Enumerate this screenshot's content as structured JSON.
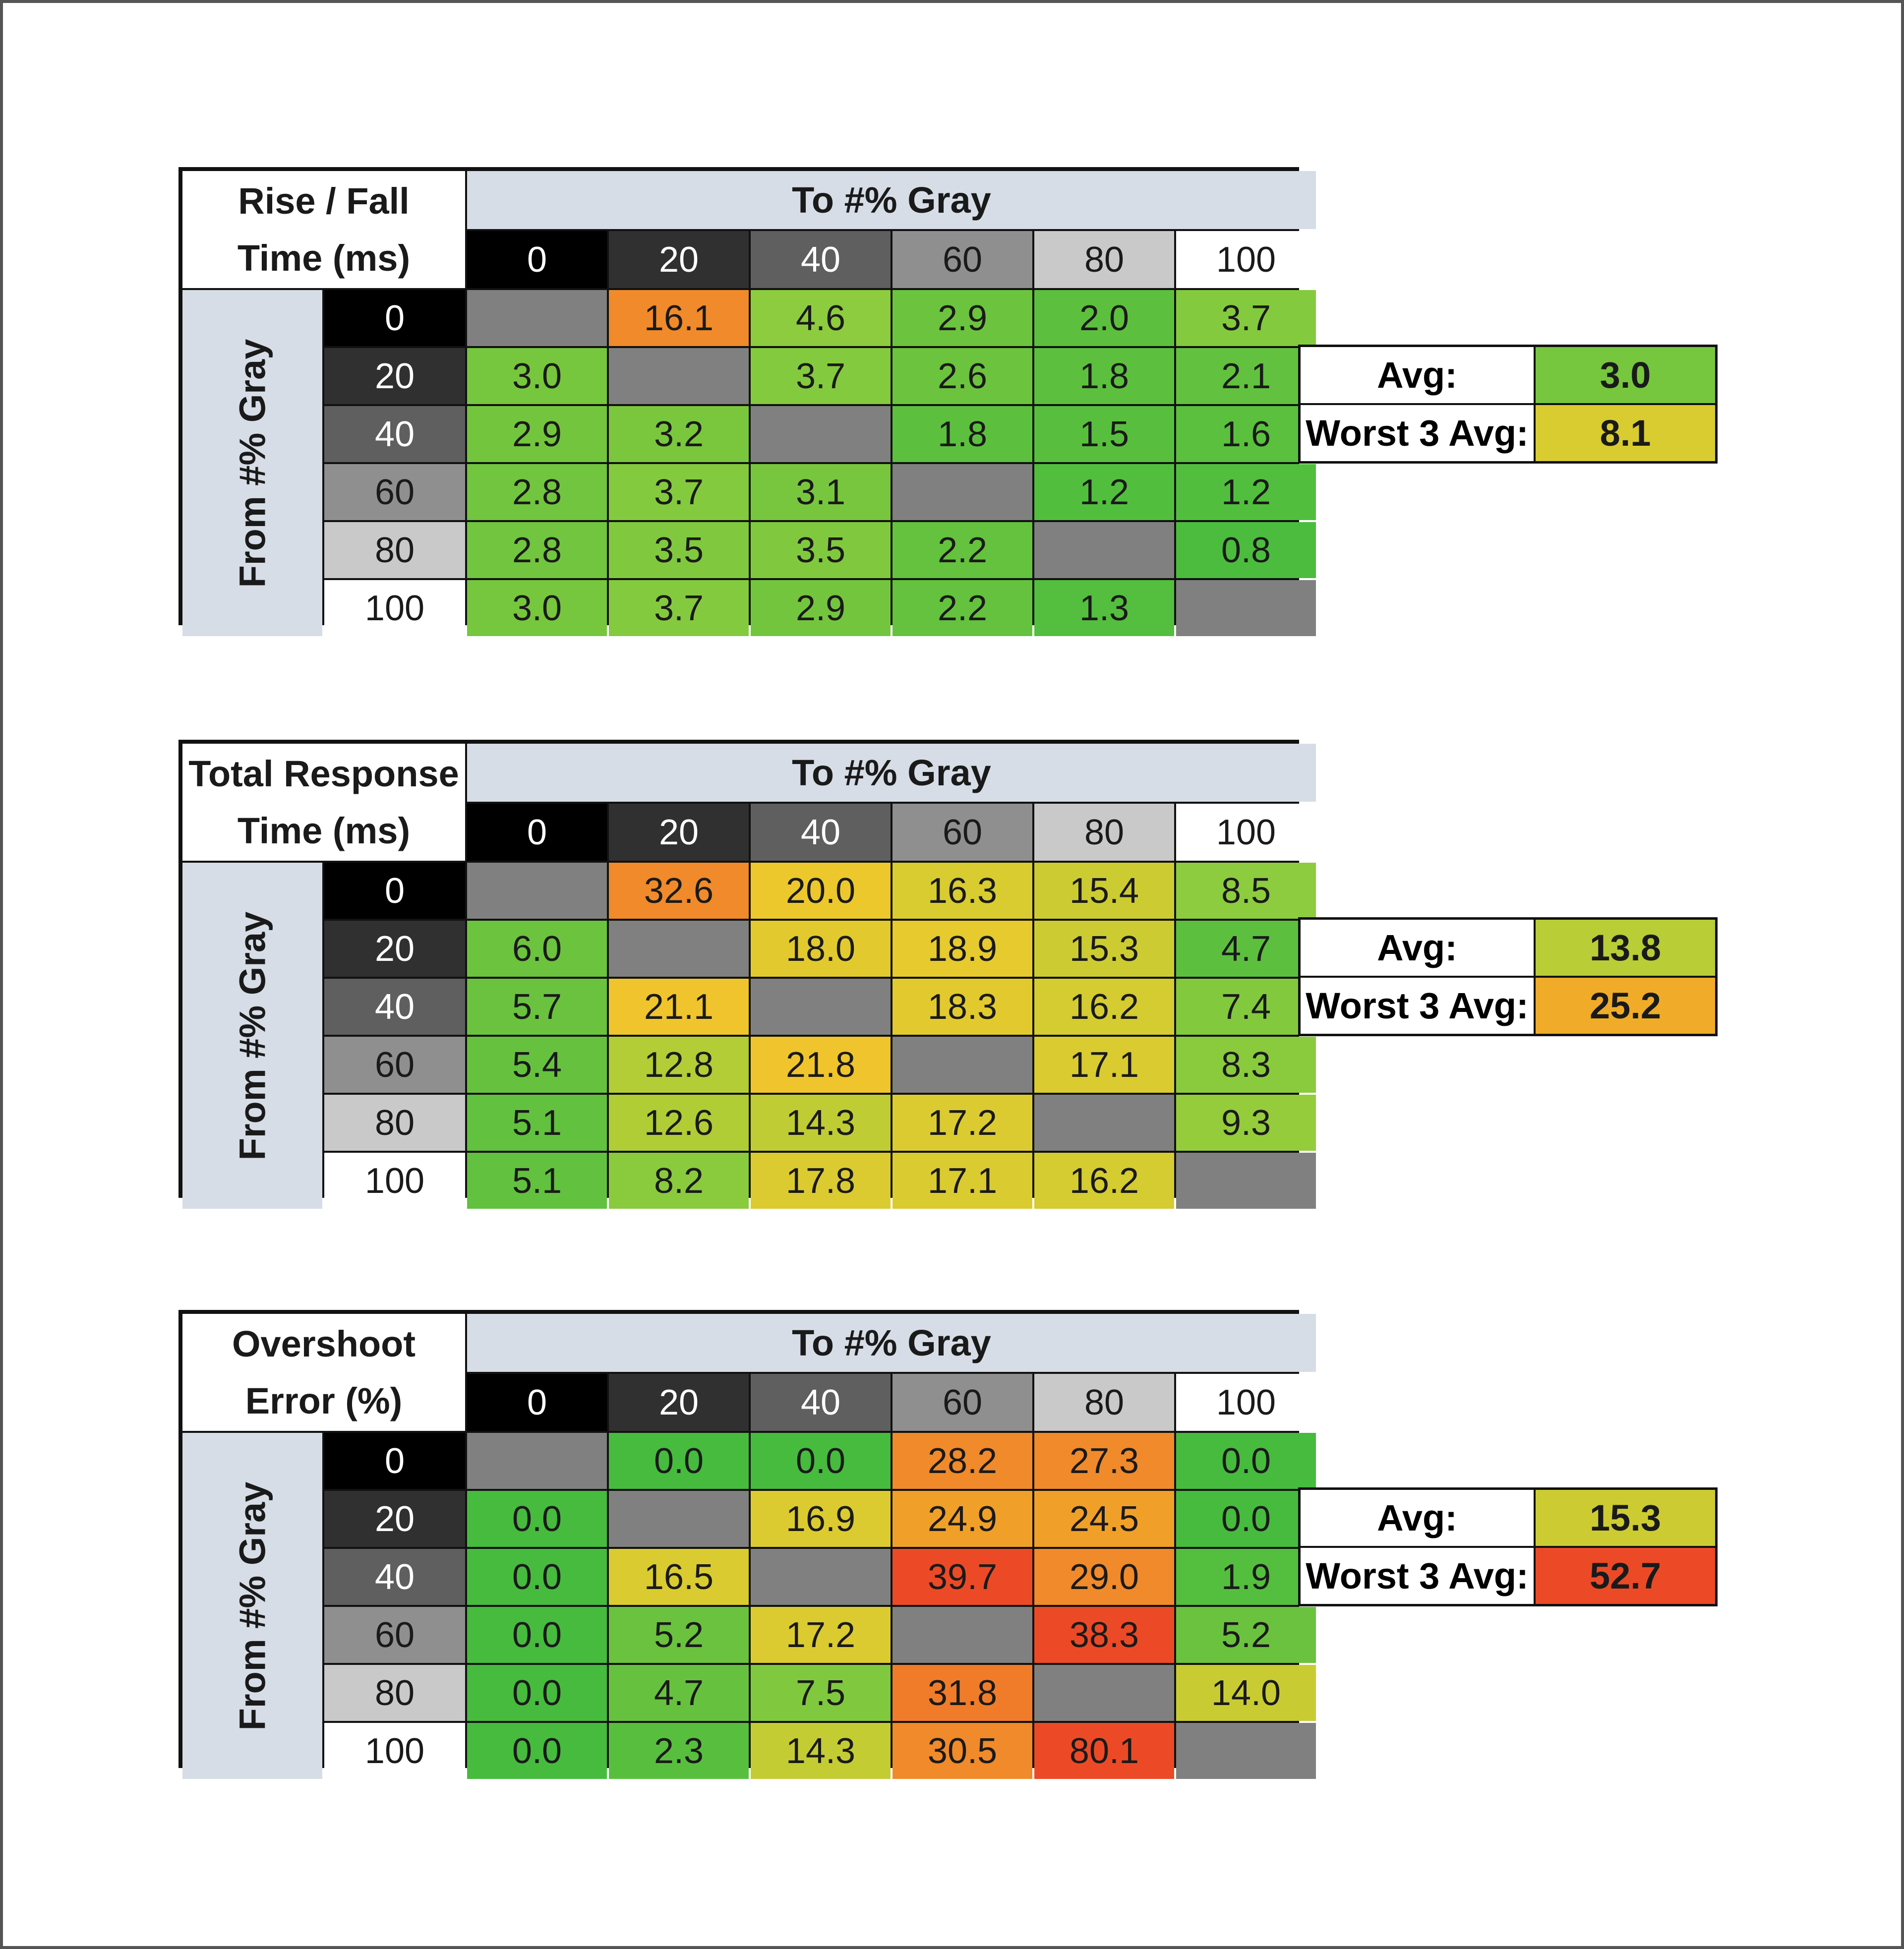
{
  "levels": [
    "0",
    "20",
    "40",
    "60",
    "80",
    "100"
  ],
  "level_colors": [
    "#000000",
    "#303030",
    "#5f5f5f",
    "#8f8f8f",
    "#c9c9c9",
    "#ffffff"
  ],
  "level_text_colors": [
    "#ffffff",
    "#ffffff",
    "#ffffff",
    "#1a1a1a",
    "#1a1a1a",
    "#1a1a1a"
  ],
  "to_header": "To #% Gray",
  "from_header": "From #% Gray",
  "avg_label": "Avg:",
  "worst_label": "Worst 3 Avg:",
  "chart_data": [
    {
      "type": "heatmap",
      "title_line1": "Rise / Fall",
      "title_line2": "Time (ms)",
      "rows": [
        [
          "",
          "16.1",
          "4.6",
          "2.9",
          "2.0",
          "3.7"
        ],
        [
          "3.0",
          "",
          "3.7",
          "2.6",
          "1.8",
          "2.1"
        ],
        [
          "2.9",
          "3.2",
          "",
          "1.8",
          "1.5",
          "1.6"
        ],
        [
          "2.8",
          "3.7",
          "3.1",
          "",
          "1.2",
          "1.2"
        ],
        [
          "2.8",
          "3.5",
          "3.5",
          "2.2",
          "",
          "0.8"
        ],
        [
          "3.0",
          "3.7",
          "2.9",
          "2.2",
          "1.3",
          ""
        ]
      ],
      "colors": [
        [
          "",
          "#f08a2a",
          "#8ccc3e",
          "#6cc33e",
          "#5cc03e",
          "#84ca3e"
        ],
        [
          "#76c63e",
          "",
          "#84ca3e",
          "#6cc33e",
          "#5cc03e",
          "#62c13e"
        ],
        [
          "#74c53e",
          "#7ac73e",
          "",
          "#5cc03e",
          "#58bf3e",
          "#5ac03e"
        ],
        [
          "#72c53e",
          "#84ca3e",
          "#78c63e",
          "",
          "#52be3e",
          "#52be3e"
        ],
        [
          "#72c53e",
          "#80c93e",
          "#80c93e",
          "#64c23e",
          "",
          "#4cbc3e"
        ],
        [
          "#76c63e",
          "#84ca3e",
          "#74c53e",
          "#64c23e",
          "#54be3e",
          ""
        ]
      ],
      "avg": "3.0",
      "avg_color": "#76c63e",
      "worst3": "8.1",
      "worst3_color": "#d8cc30"
    },
    {
      "type": "heatmap",
      "title_line1": "Total Response",
      "title_line2": "Time (ms)",
      "rows": [
        [
          "",
          "32.6",
          "20.0",
          "16.3",
          "15.4",
          "8.5"
        ],
        [
          "6.0",
          "",
          "18.0",
          "18.9",
          "15.3",
          "4.7"
        ],
        [
          "5.7",
          "21.1",
          "",
          "18.3",
          "16.2",
          "7.4"
        ],
        [
          "5.4",
          "12.8",
          "21.8",
          "",
          "17.1",
          "8.3"
        ],
        [
          "5.1",
          "12.6",
          "14.3",
          "17.2",
          "",
          "9.3"
        ],
        [
          "5.1",
          "8.2",
          "17.8",
          "17.1",
          "16.2",
          ""
        ]
      ],
      "colors": [
        [
          "",
          "#f08a2a",
          "#ecc82c",
          "#d8cc30",
          "#cccc32",
          "#8ccc3e"
        ],
        [
          "#6cc33e",
          "",
          "#e2ca2e",
          "#e6ca2e",
          "#cccc32",
          "#5cc03e"
        ],
        [
          "#6ac23e",
          "#f0c42c",
          "",
          "#e2ca2e",
          "#d4cc30",
          "#82c93e"
        ],
        [
          "#66c23e",
          "#b2cd36",
          "#f0c42c",
          "",
          "#dacb30",
          "#8acb3e"
        ],
        [
          "#62c13e",
          "#b0cd36",
          "#c0cc34",
          "#dccb30",
          "",
          "#94cc3c"
        ],
        [
          "#62c13e",
          "#8acb3e",
          "#dccb30",
          "#dacb30",
          "#d4cc30",
          ""
        ]
      ],
      "avg": "13.8",
      "avg_color": "#b8cd36",
      "worst3": "25.2",
      "worst3_color": "#f0ac28"
    },
    {
      "type": "heatmap",
      "title_line1": "Overshoot",
      "title_line2": "Error (%)",
      "rows": [
        [
          "",
          "0.0",
          "0.0",
          "28.2",
          "27.3",
          "0.0"
        ],
        [
          "0.0",
          "",
          "16.9",
          "24.9",
          "24.5",
          "0.0"
        ],
        [
          "0.0",
          "16.5",
          "",
          "39.7",
          "29.0",
          "1.9"
        ],
        [
          "0.0",
          "5.2",
          "17.2",
          "",
          "38.3",
          "5.2"
        ],
        [
          "0.0",
          "4.7",
          "7.5",
          "31.8",
          "",
          "14.0"
        ],
        [
          "0.0",
          "2.3",
          "14.3",
          "30.5",
          "80.1",
          ""
        ]
      ],
      "colors": [
        [
          "",
          "#46bb3e",
          "#46bb3e",
          "#f08a2a",
          "#f08a2a",
          "#46bb3e"
        ],
        [
          "#46bb3e",
          "",
          "#dccb30",
          "#f0a028",
          "#f0a028",
          "#46bb3e"
        ],
        [
          "#46bb3e",
          "#dacb30",
          "",
          "#ec4a26",
          "#f08a2a",
          "#54be3e"
        ],
        [
          "#46bb3e",
          "#6ac23e",
          "#dccb30",
          "",
          "#ec4a26",
          "#6ac23e"
        ],
        [
          "#46bb3e",
          "#66c23e",
          "#80c93e",
          "#f07c2a",
          "",
          "#c8cc32"
        ],
        [
          "#46bb3e",
          "#58bf3e",
          "#c4cc34",
          "#f08a2a",
          "#ec4a26",
          ""
        ]
      ],
      "avg": "15.3",
      "avg_color": "#cccc32",
      "worst3": "52.7",
      "worst3_color": "#ec4a26"
    }
  ]
}
